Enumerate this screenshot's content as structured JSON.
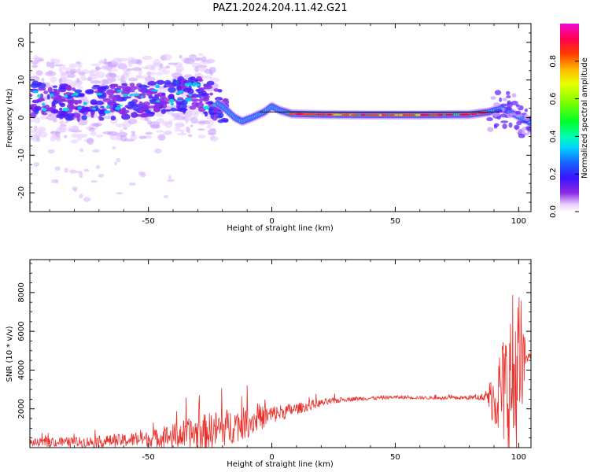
{
  "title": "PAZ1.2024.204.11.42.G21",
  "chart_data": [
    {
      "type": "heatmap",
      "xlabel": "Height of straight line (km)",
      "ylabel": "Frequency (Hz)",
      "xlim": [
        -98,
        105
      ],
      "ylim": [
        -25,
        25
      ],
      "xticks": [
        -50,
        0,
        50,
        100
      ],
      "yticks": [
        -20,
        -10,
        0,
        10,
        20
      ],
      "colorbar": {
        "label": "Normalized spectral amplitude",
        "range": [
          0,
          1
        ],
        "ticks": [
          "0.0",
          "0.2",
          "0.4",
          "0.6",
          "0.8"
        ],
        "colormap": "gist_ncar-like (white, purple, blue, cyan, green, yellow, orange, red, magenta)"
      },
      "ridge": [
        {
          "x": -97,
          "y": 5
        },
        {
          "x": -90,
          "y": 4.5
        },
        {
          "x": -80,
          "y": 4
        },
        {
          "x": -70,
          "y": 4
        },
        {
          "x": -60,
          "y": 4.5
        },
        {
          "x": -50,
          "y": 5
        },
        {
          "x": -40,
          "y": 6
        },
        {
          "x": -30,
          "y": 6
        },
        {
          "x": -25,
          "y": 5
        },
        {
          "x": -20,
          "y": 3
        },
        {
          "x": -15,
          "y": 0
        },
        {
          "x": -12,
          "y": -1
        },
        {
          "x": -8,
          "y": 0
        },
        {
          "x": -3,
          "y": 1.5
        },
        {
          "x": 0,
          "y": 3
        },
        {
          "x": 3,
          "y": 2
        },
        {
          "x": 8,
          "y": 1
        },
        {
          "x": 20,
          "y": 0.8
        },
        {
          "x": 40,
          "y": 0.7
        },
        {
          "x": 60,
          "y": 0.7
        },
        {
          "x": 80,
          "y": 0.8
        },
        {
          "x": 88,
          "y": 1.5
        },
        {
          "x": 93,
          "y": 2.5
        },
        {
          "x": 98,
          "y": 1
        },
        {
          "x": 101,
          "y": 0
        },
        {
          "x": 104,
          "y": -1
        }
      ],
      "reference_line": {
        "x": [
          -5,
          92
        ],
        "y": 1.5
      }
    },
    {
      "type": "line",
      "xlabel": "Height of straight line (km)",
      "ylabel": "SNR (10 * v/v)",
      "xlim": [
        -98,
        105
      ],
      "ylim": [
        0,
        9700
      ],
      "xticks": [
        -50,
        0,
        50,
        100
      ],
      "yticks": [
        2000,
        4000,
        6000,
        8000
      ],
      "color": "#e8312b",
      "envelope": [
        {
          "x": -98,
          "mean": 250,
          "amp": 200
        },
        {
          "x": -70,
          "mean": 300,
          "amp": 300
        },
        {
          "x": -50,
          "mean": 450,
          "amp": 400
        },
        {
          "x": -30,
          "mean": 750,
          "amp": 900
        },
        {
          "x": -20,
          "mean": 1000,
          "amp": 1000
        },
        {
          "x": -10,
          "mean": 1300,
          "amp": 800
        },
        {
          "x": 0,
          "mean": 1700,
          "amp": 500
        },
        {
          "x": 10,
          "mean": 2000,
          "amp": 300
        },
        {
          "x": 20,
          "mean": 2300,
          "amp": 200
        },
        {
          "x": 30,
          "mean": 2500,
          "amp": 120
        },
        {
          "x": 50,
          "mean": 2600,
          "amp": 80
        },
        {
          "x": 70,
          "mean": 2550,
          "amp": 80
        },
        {
          "x": 86,
          "mean": 2600,
          "amp": 150
        },
        {
          "x": 90,
          "mean": 2600,
          "amp": 1500
        },
        {
          "x": 95,
          "mean": 3000,
          "amp": 3500
        },
        {
          "x": 99,
          "mean": 3500,
          "amp": 5500
        },
        {
          "x": 101,
          "mean": 3800,
          "amp": 4000
        },
        {
          "x": 103,
          "mean": 4700,
          "amp": 300
        },
        {
          "x": 105,
          "mean": 4700,
          "amp": 100
        }
      ]
    }
  ]
}
